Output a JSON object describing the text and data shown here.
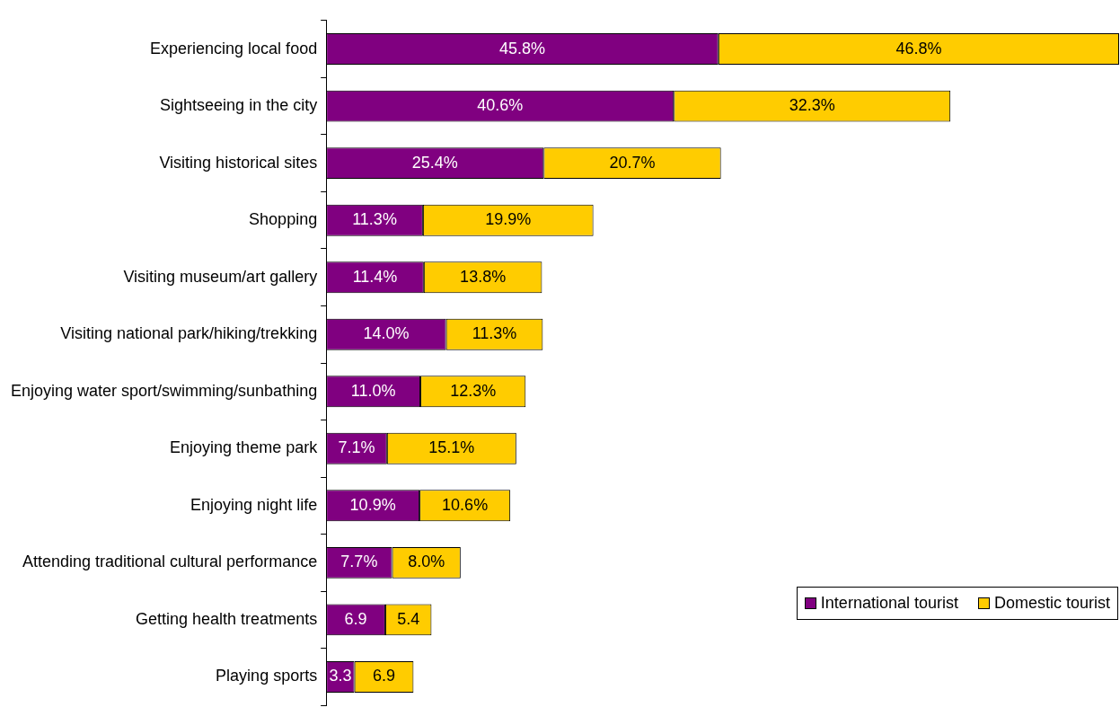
{
  "chart_data": {
    "type": "bar",
    "orientation": "horizontal",
    "stacked": true,
    "legend": "bottom right",
    "categories": [
      "Experiencing local food",
      "Sightseeing in the city",
      "Visiting historical sites",
      "Shopping",
      "Visiting museum/art gallery",
      "Visiting national park/hiking/trekking",
      "Enjoying water sport/swimming/sunbathing",
      "Enjoying theme park",
      "Enjoying night life",
      "Attending traditional cultural performance",
      "Getting health treatments",
      "Playing sports"
    ],
    "series": [
      {
        "name": "International tourist",
        "color": "#800080",
        "values": [
          45.8,
          40.6,
          25.4,
          11.3,
          11.4,
          14.0,
          11.0,
          7.1,
          10.9,
          7.7,
          6.9,
          3.3
        ],
        "value_labels": [
          "45.8%",
          "40.6%",
          "25.4%",
          "11.3%",
          "11.4%",
          "14.0%",
          "11.0%",
          "7.1%",
          "10.9%",
          "7.7%",
          "6.9",
          "3.3"
        ]
      },
      {
        "name": "Domestic tourist",
        "color": "#ffcc00",
        "values": [
          46.8,
          32.3,
          20.7,
          19.9,
          13.8,
          11.3,
          12.3,
          15.1,
          10.6,
          8.0,
          5.4,
          6.9
        ],
        "value_labels": [
          "46.8%",
          "32.3%",
          "20.7%",
          "19.9%",
          "13.8%",
          "11.3%",
          "12.3%",
          "15.1%",
          "10.6%",
          "8.0%",
          "5.4",
          "6.9"
        ]
      }
    ]
  }
}
